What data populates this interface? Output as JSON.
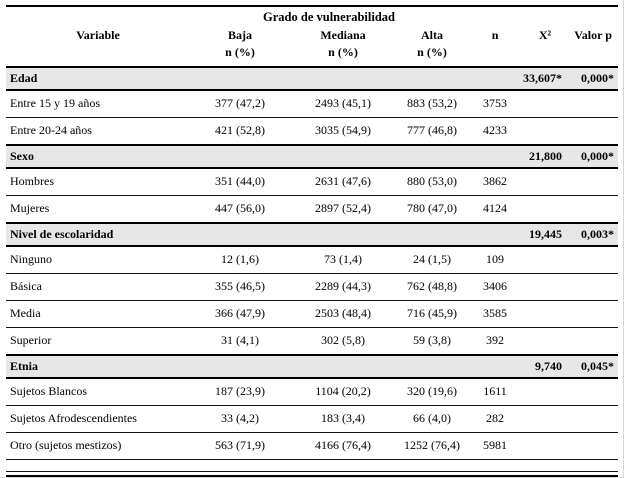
{
  "table": {
    "headers": {
      "variable": "Variable",
      "group_title": "Grado de vulnerabilidad",
      "baja": "Baja",
      "mediana": "Mediana",
      "alta": "Alta",
      "sub": "n (%)",
      "n": "n",
      "chi": "X²",
      "p": "Valor p"
    },
    "sections": [
      {
        "label": "Edad",
        "chi": "33,607*",
        "p": "0,000*",
        "rows": [
          {
            "label": "Entre 15 y 19 años",
            "baja": "377 (47,2)",
            "mediana": "2493 (45,1)",
            "alta": "883 (53,2)",
            "n": "3753"
          },
          {
            "label": "Entre 20-24 años",
            "baja": "421 (52,8)",
            "mediana": "3035 (54,9)",
            "alta": "777 (46,8)",
            "n": "4233"
          }
        ]
      },
      {
        "label": "Sexo",
        "chi": "21,800",
        "p": "0,000*",
        "rows": [
          {
            "label": "Hombres",
            "baja": "351 (44,0)",
            "mediana": "2631 (47,6)",
            "alta": "880 (53,0)",
            "n": "3862"
          },
          {
            "label": "Mujeres",
            "baja": "447 (56,0)",
            "mediana": "2897 (52,4)",
            "alta": "780 (47,0)",
            "n": "4124"
          }
        ]
      },
      {
        "label": "Nivel de escolaridad",
        "chi": "19,445",
        "p": "0,003*",
        "rows": [
          {
            "label": "Ninguno",
            "baja": "12 (1,6)",
            "mediana": "73 (1,4)",
            "alta": "24 (1,5)",
            "n": "109"
          },
          {
            "label": "Básica",
            "baja": "355 (46,5)",
            "mediana": "2289 (44,3)",
            "alta": "762 (48,8)",
            "n": "3406"
          },
          {
            "label": "Media",
            "baja": "366 (47,9)",
            "mediana": "2503 (48,4)",
            "alta": "716 (45,9)",
            "n": "3585"
          },
          {
            "label": "Superior",
            "baja": "31 (4,1)",
            "mediana": "302 (5,8)",
            "alta": "59 (3,8)",
            "n": "392"
          }
        ]
      },
      {
        "label": "Etnia",
        "chi": "9,740",
        "p": "0,045*",
        "rows": [
          {
            "label": "Sujetos Blancos",
            "baja": "187 (23,9)",
            "mediana": "1104 (20,2)",
            "alta": "320 (19,6)",
            "n": "1611"
          },
          {
            "label": "Sujetos Afrodescendientes",
            "baja": "33 (4,2)",
            "mediana": "183 (3,4)",
            "alta": "66 (4,0)",
            "n": "282"
          },
          {
            "label": "Otro (sujetos mestizos)",
            "baja": "563 (71,9)",
            "mediana": "4166 (76,4)",
            "alta": "1252 (76,4)",
            "n": "5981"
          }
        ]
      }
    ]
  }
}
